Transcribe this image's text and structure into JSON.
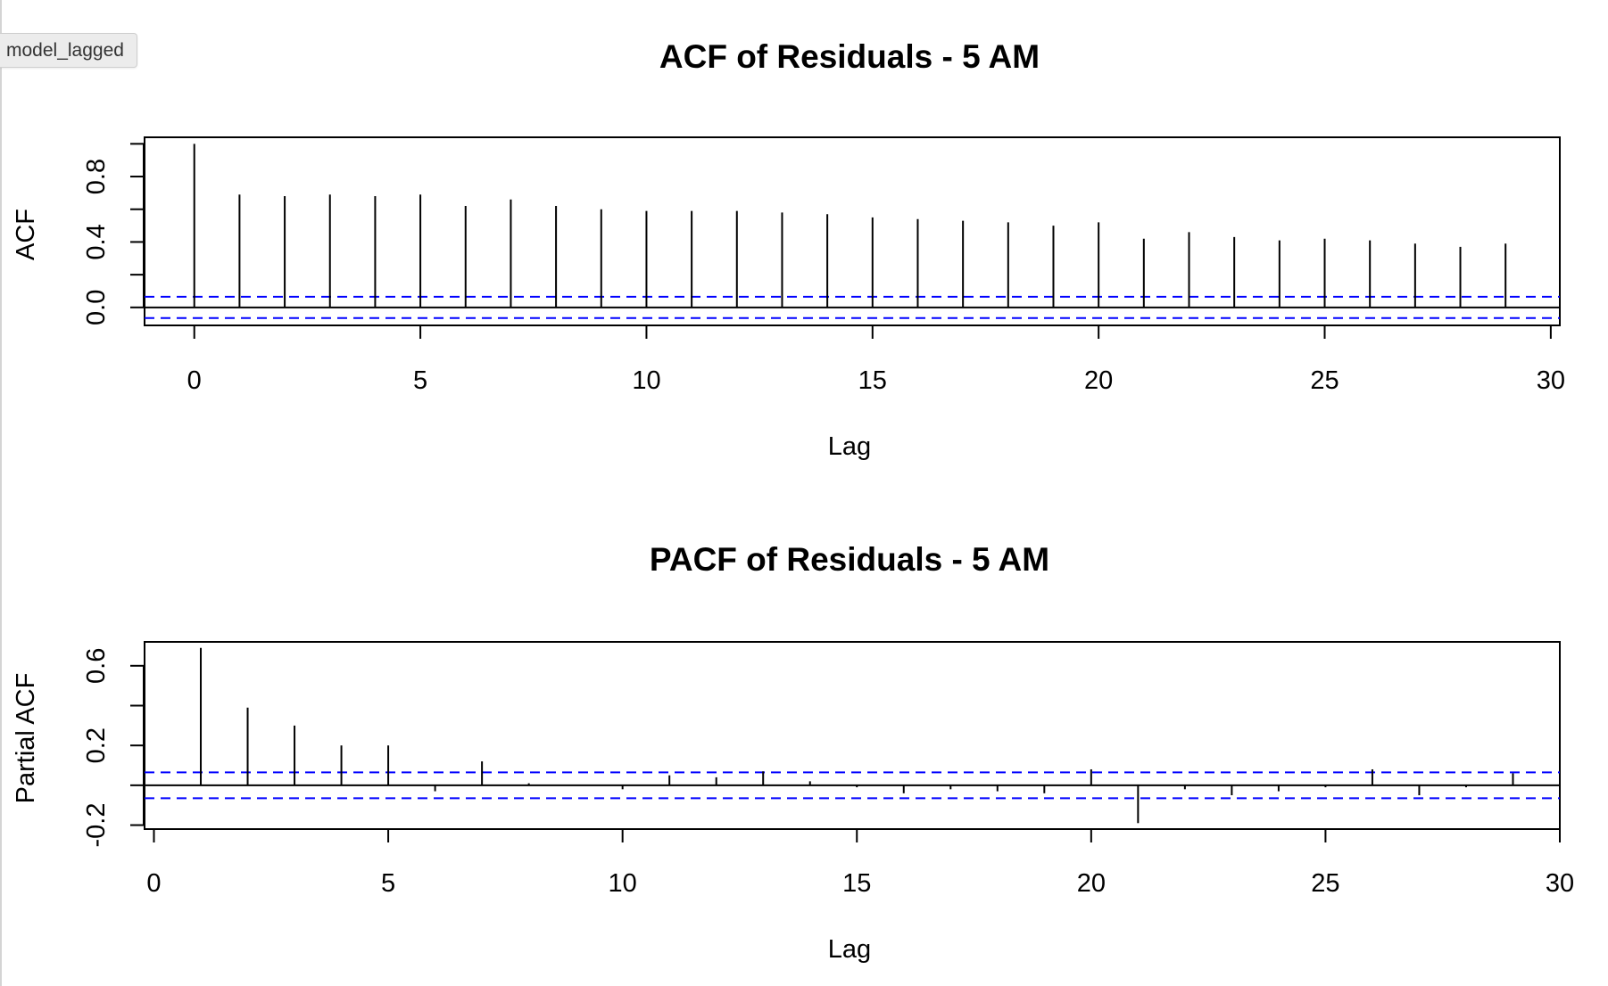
{
  "overlay": {
    "label": "model_lagged"
  },
  "colors": {
    "bars": "#000000",
    "confidence": "#0000ff",
    "frame": "#000000"
  },
  "chart_data": [
    {
      "type": "bar",
      "title": "ACF of Residuals - 5 AM",
      "xlabel": "Lag",
      "ylabel": "ACF",
      "xlim": [
        -1.1,
        30.2
      ],
      "ylim": [
        -0.11,
        1.04
      ],
      "x_ticks": [
        0,
        5,
        10,
        15,
        20,
        25,
        30
      ],
      "x_tick_labels": [
        "0",
        "5",
        "10",
        "15",
        "20",
        "25",
        "30"
      ],
      "y_ticks": [
        0.0,
        0.2,
        0.4,
        0.6,
        0.8,
        1.0
      ],
      "y_tick_labels": [
        "0.0",
        "",
        "0.4",
        "",
        "0.8",
        ""
      ],
      "confidence_bounds": [
        0.065,
        -0.065
      ],
      "zero_line": true,
      "lags": [
        0,
        1,
        2,
        3,
        4,
        5,
        6,
        7,
        8,
        9,
        10,
        11,
        12,
        13,
        14,
        15,
        16,
        17,
        18,
        19,
        20,
        21,
        22,
        23,
        24,
        25,
        26,
        27,
        28,
        29
      ],
      "values": [
        1.0,
        0.69,
        0.68,
        0.69,
        0.68,
        0.69,
        0.62,
        0.66,
        0.62,
        0.6,
        0.59,
        0.59,
        0.59,
        0.58,
        0.57,
        0.55,
        0.54,
        0.53,
        0.52,
        0.5,
        0.52,
        0.42,
        0.46,
        0.43,
        0.41,
        0.42,
        0.41,
        0.39,
        0.37,
        0.39
      ]
    },
    {
      "type": "bar",
      "title": "PACF of Residuals - 5 AM",
      "xlabel": "Lag",
      "ylabel": "Partial ACF",
      "xlim": [
        -0.2,
        30.0
      ],
      "ylim": [
        -0.22,
        0.72
      ],
      "x_ticks": [
        0,
        5,
        10,
        15,
        20,
        25,
        30
      ],
      "x_tick_labels": [
        "0",
        "5",
        "10",
        "15",
        "20",
        "25",
        "30"
      ],
      "y_ticks": [
        -0.2,
        0.0,
        0.2,
        0.4,
        0.6
      ],
      "y_tick_labels": [
        "-0.2",
        "",
        "0.2",
        "",
        "0.6"
      ],
      "confidence_bounds": [
        0.065,
        -0.065
      ],
      "zero_line": true,
      "lags": [
        1,
        2,
        3,
        4,
        5,
        6,
        7,
        8,
        9,
        10,
        11,
        12,
        13,
        14,
        15,
        16,
        17,
        18,
        19,
        20,
        21,
        22,
        23,
        24,
        25,
        26,
        27,
        28,
        29
      ],
      "values": [
        0.69,
        0.39,
        0.3,
        0.2,
        0.2,
        -0.03,
        0.12,
        0.01,
        0.0,
        -0.02,
        0.05,
        0.04,
        0.07,
        0.02,
        -0.01,
        -0.04,
        -0.02,
        -0.03,
        -0.04,
        0.08,
        -0.19,
        -0.02,
        -0.05,
        -0.03,
        -0.01,
        0.08,
        -0.05,
        -0.01,
        0.06
      ]
    }
  ]
}
